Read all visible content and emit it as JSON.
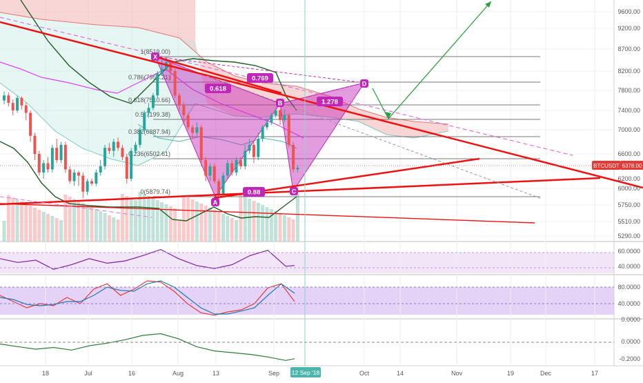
{
  "symbol_badge": "BTCUSDT",
  "colors": {
    "bull": "#26a69a",
    "bear": "#ef5350",
    "trend": "#ee1111",
    "pattern": "#c026b8",
    "arrow": "#2ea043",
    "rsi": "#7b1fa2",
    "stoch_k": "#1f77b4",
    "stoch_d": "#e53935",
    "cloud": "#f4b4b4",
    "fib_line": "#777777",
    "macd": "#2e7d32"
  },
  "chart_data": [
    {
      "type": "candlestick",
      "title": "",
      "price_axis": {
        "ticks": [
          "9600.00",
          "9200.00",
          "8700.00",
          "8200.00",
          "7800.00",
          "7400.00",
          "7000.00",
          "6600.00",
          "6200.00",
          "6000.00",
          "5750.00",
          "5510.00",
          "5290.00"
        ],
        "current_price": "6378.00"
      },
      "time_axis": {
        "ticks": [
          "18",
          "Jul",
          "16",
          "Aug",
          "13",
          "Sep",
          "Oct",
          "14",
          "Nov",
          "19",
          "Dec",
          "17"
        ],
        "cursor_label": "12 Sep '18"
      },
      "fib_levels": [
        {
          "ratio": "1",
          "price": "8519.00",
          "label": "1(8519.00)"
        },
        {
          "ratio": "0.786",
          "price": "7954.21",
          "label": "0.786(7954.21)"
        },
        {
          "ratio": "0.618",
          "price": "7510.66",
          "label": "0.618(7510.66)"
        },
        {
          "ratio": "0.5",
          "price": "7199.38",
          "label": "0.5(7199.38)"
        },
        {
          "ratio": "0.382",
          "price": "6887.94",
          "label": "0.382(6887.94)"
        },
        {
          "ratio": "0.236",
          "price": "6502.61",
          "label": "0.236(6502.61)"
        },
        {
          "ratio": "0",
          "price": "5879.74",
          "label": "0(5879.74)"
        }
      ],
      "harmonic_pattern": {
        "points": [
          "X",
          "A",
          "B",
          "C",
          "D"
        ],
        "ratios": [
          "0.618",
          "0.769",
          "1.278",
          "0.88"
        ]
      },
      "candles": [
        {
          "o": 7600,
          "c": 7700,
          "h": 7780,
          "l": 7520
        },
        {
          "o": 7700,
          "c": 7550,
          "h": 7760,
          "l": 7480
        },
        {
          "o": 7550,
          "c": 7400,
          "h": 7620,
          "l": 7300
        },
        {
          "o": 7400,
          "c": 7650,
          "h": 7700,
          "l": 7350
        },
        {
          "o": 7650,
          "c": 7500,
          "h": 7680,
          "l": 7420
        },
        {
          "o": 7500,
          "c": 7350,
          "h": 7560,
          "l": 7200
        },
        {
          "o": 7350,
          "c": 6900,
          "h": 7400,
          "l": 6800
        },
        {
          "o": 6900,
          "c": 6600,
          "h": 6950,
          "l": 6500
        },
        {
          "o": 6600,
          "c": 6300,
          "h": 6650,
          "l": 6250
        },
        {
          "o": 6300,
          "c": 6450,
          "h": 6500,
          "l": 6200
        },
        {
          "o": 6450,
          "c": 6350,
          "h": 6550,
          "l": 6300
        },
        {
          "o": 6350,
          "c": 6700,
          "h": 6750,
          "l": 6300
        },
        {
          "o": 6700,
          "c": 6500,
          "h": 6850,
          "l": 6450
        },
        {
          "o": 6500,
          "c": 6750,
          "h": 6800,
          "l": 6450
        },
        {
          "o": 6750,
          "c": 6350,
          "h": 6800,
          "l": 6300
        },
        {
          "o": 6350,
          "c": 6150,
          "h": 6400,
          "l": 6100
        },
        {
          "o": 6150,
          "c": 6300,
          "h": 6350,
          "l": 6050
        },
        {
          "o": 6300,
          "c": 6250,
          "h": 6330,
          "l": 6050
        },
        {
          "o": 6250,
          "c": 5950,
          "h": 6300,
          "l": 5850
        },
        {
          "o": 5950,
          "c": 6150,
          "h": 6200,
          "l": 5900
        },
        {
          "o": 6150,
          "c": 6100,
          "h": 6200,
          "l": 6050
        },
        {
          "o": 6100,
          "c": 6300,
          "h": 6350,
          "l": 6050
        },
        {
          "o": 6300,
          "c": 6400,
          "h": 6500,
          "l": 6250
        },
        {
          "o": 6400,
          "c": 6700,
          "h": 6750,
          "l": 6350
        },
        {
          "o": 6700,
          "c": 6650,
          "h": 6780,
          "l": 6600
        },
        {
          "o": 6650,
          "c": 6800,
          "h": 6850,
          "l": 6550
        },
        {
          "o": 6800,
          "c": 6700,
          "h": 6870,
          "l": 6650
        },
        {
          "o": 6700,
          "c": 6550,
          "h": 6750,
          "l": 6500
        },
        {
          "o": 6550,
          "c": 6200,
          "h": 6600,
          "l": 6100
        },
        {
          "o": 6200,
          "c": 6650,
          "h": 6700,
          "l": 6150
        },
        {
          "o": 6650,
          "c": 6750,
          "h": 6800,
          "l": 6600
        },
        {
          "o": 6750,
          "c": 7000,
          "h": 7050,
          "l": 6700
        },
        {
          "o": 7000,
          "c": 7350,
          "h": 7400,
          "l": 6950
        },
        {
          "o": 7350,
          "c": 7450,
          "h": 7550,
          "l": 7250
        },
        {
          "o": 7450,
          "c": 7700,
          "h": 7750,
          "l": 7400
        },
        {
          "o": 7700,
          "c": 8150,
          "h": 8200,
          "l": 7650
        },
        {
          "o": 8150,
          "c": 8250,
          "h": 8450,
          "l": 8100
        },
        {
          "o": 8250,
          "c": 8400,
          "h": 8519,
          "l": 8200
        },
        {
          "o": 8400,
          "c": 8200,
          "h": 8450,
          "l": 8000
        },
        {
          "o": 8200,
          "c": 7700,
          "h": 8250,
          "l": 7650
        },
        {
          "o": 7700,
          "c": 7500,
          "h": 7750,
          "l": 7400
        },
        {
          "o": 7500,
          "c": 7300,
          "h": 7560,
          "l": 7100
        },
        {
          "o": 7300,
          "c": 7050,
          "h": 7350,
          "l": 7000
        },
        {
          "o": 7050,
          "c": 6950,
          "h": 7100,
          "l": 6850
        },
        {
          "o": 6950,
          "c": 7050,
          "h": 7150,
          "l": 6900
        },
        {
          "o": 7050,
          "c": 6500,
          "h": 7100,
          "l": 6400
        },
        {
          "o": 6500,
          "c": 6250,
          "h": 6550,
          "l": 6150
        },
        {
          "o": 6250,
          "c": 6400,
          "h": 6450,
          "l": 6150
        },
        {
          "o": 6400,
          "c": 6150,
          "h": 6450,
          "l": 6100
        },
        {
          "o": 6150,
          "c": 5900,
          "h": 6200,
          "l": 5879
        },
        {
          "o": 5900,
          "c": 6250,
          "h": 6300,
          "l": 5890
        },
        {
          "o": 6250,
          "c": 6450,
          "h": 6500,
          "l": 6200
        },
        {
          "o": 6450,
          "c": 6300,
          "h": 6500,
          "l": 6250
        },
        {
          "o": 6300,
          "c": 6500,
          "h": 6550,
          "l": 6250
        },
        {
          "o": 6500,
          "c": 6400,
          "h": 6550,
          "l": 6350
        },
        {
          "o": 6400,
          "c": 6650,
          "h": 6750,
          "l": 6350
        },
        {
          "o": 6650,
          "c": 6750,
          "h": 6850,
          "l": 6600
        },
        {
          "o": 6750,
          "c": 6550,
          "h": 6800,
          "l": 6450
        },
        {
          "o": 6550,
          "c": 6850,
          "h": 6950,
          "l": 6500
        },
        {
          "o": 6850,
          "c": 7050,
          "h": 7100,
          "l": 6800
        },
        {
          "o": 7050,
          "c": 7150,
          "h": 7250,
          "l": 7000
        },
        {
          "o": 7150,
          "c": 7300,
          "h": 7350,
          "l": 7100
        },
        {
          "o": 7300,
          "c": 7400,
          "h": 7450,
          "l": 7250
        },
        {
          "o": 7400,
          "c": 7200,
          "h": 7420,
          "l": 7100
        },
        {
          "o": 7200,
          "c": 7300,
          "h": 7420,
          "l": 7150
        },
        {
          "o": 7300,
          "c": 6750,
          "h": 7340,
          "l": 6700
        },
        {
          "o": 6750,
          "c": 6350,
          "h": 6800,
          "l": 6300
        },
        {
          "o": 6350,
          "c": 6378,
          "h": 6420,
          "l": 6300
        }
      ]
    },
    {
      "type": "line",
      "title": "",
      "yaxis_ticks": [
        "60.0000",
        "40.0000"
      ],
      "x": [
        0,
        4,
        8,
        12,
        16,
        20,
        24,
        28,
        32,
        36,
        40,
        44,
        48,
        52,
        56,
        60,
        64,
        66
      ],
      "series": [
        {
          "name": "",
          "values": [
            52,
            47,
            50,
            38,
            44,
            52,
            46,
            49,
            56,
            64,
            52,
            43,
            39,
            44,
            56,
            63,
            42,
            43
          ]
        }
      ]
    },
    {
      "type": "line",
      "title": "",
      "yaxis_ticks": [
        "80.0000",
        "40.0000",
        "0.0000"
      ],
      "x": [
        0,
        3,
        6,
        9,
        12,
        15,
        18,
        21,
        24,
        27,
        30,
        33,
        36,
        39,
        42,
        45,
        48,
        51,
        54,
        57,
        60,
        63,
        66
      ],
      "series": [
        {
          "name": "",
          "values": [
            60,
            45,
            30,
            40,
            35,
            55,
            40,
            75,
            88,
            60,
            75,
            95,
            92,
            70,
            40,
            18,
            12,
            20,
            25,
            40,
            78,
            88,
            45
          ]
        },
        {
          "name": "",
          "values": [
            55,
            50,
            38,
            35,
            38,
            45,
            45,
            60,
            80,
            72,
            70,
            88,
            95,
            80,
            55,
            30,
            15,
            15,
            22,
            30,
            60,
            88,
            65
          ]
        }
      ]
    },
    {
      "type": "line",
      "title": "",
      "yaxis_ticks": [
        "0.0000",
        "-0.2000"
      ],
      "x": [
        0,
        4,
        8,
        12,
        16,
        20,
        24,
        28,
        32,
        36,
        40,
        44,
        48,
        52,
        56,
        60,
        64,
        66
      ],
      "series": [
        {
          "name": "",
          "values": [
            -0.02,
            -0.05,
            -0.08,
            -0.06,
            -0.09,
            -0.04,
            -0.01,
            0.03,
            0.08,
            0.1,
            0.04,
            -0.05,
            -0.1,
            -0.12,
            -0.14,
            -0.17,
            -0.21,
            -0.19
          ]
        }
      ]
    }
  ]
}
